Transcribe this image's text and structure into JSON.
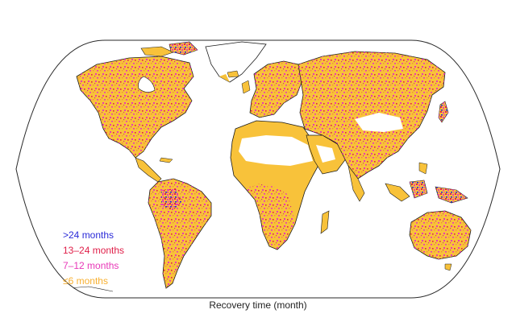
{
  "colors": {
    "land_base": "#f8c23a",
    "coast": "#1a1a1a",
    "frame": "#2a2a2a",
    "desert": "#ffffff"
  },
  "legend": [
    {
      "label": ">24 months",
      "color": "#2a2ad8"
    },
    {
      "label": "13–24 months",
      "color": "#e0204a"
    },
    {
      "label": "7–12 months",
      "color": "#e838b8"
    },
    {
      "label": "≤6 months",
      "color": "#f8b030"
    }
  ],
  "caption": "Recovery time (month)"
}
